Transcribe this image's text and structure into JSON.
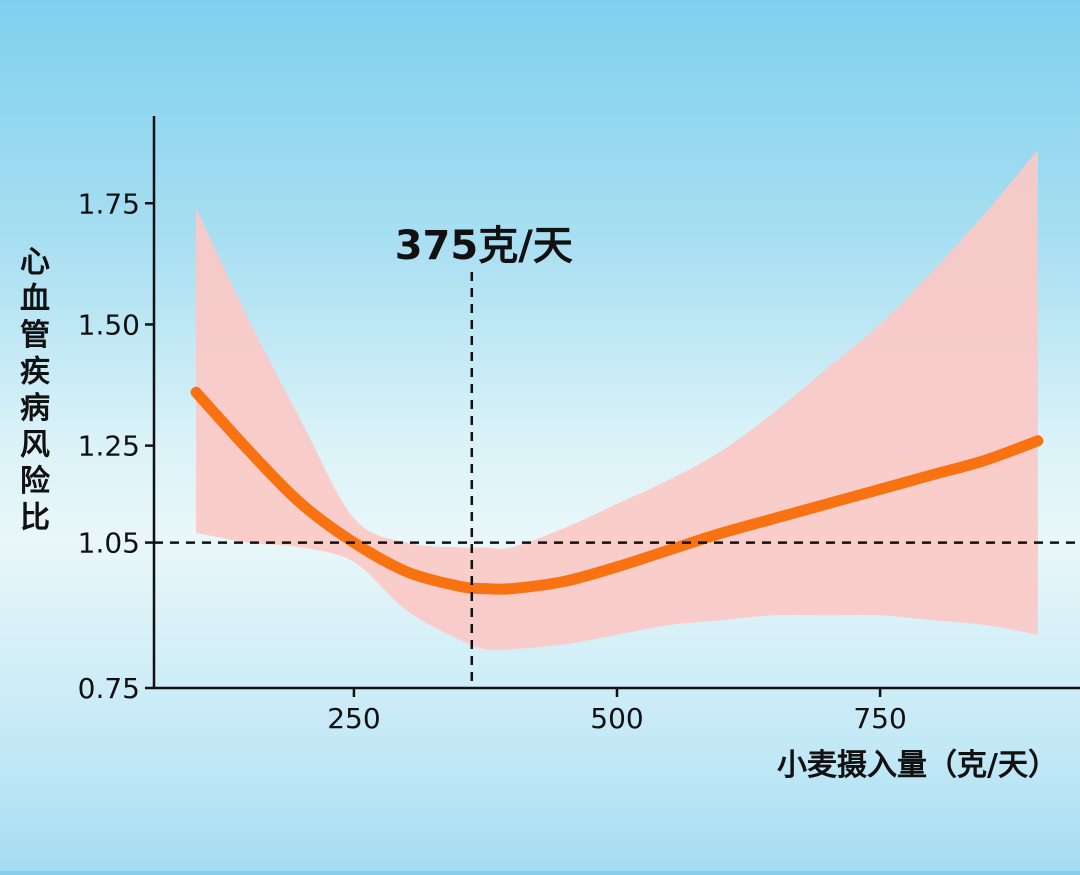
{
  "chart_data": {
    "type": "line",
    "title": "",
    "annotation": "375克/天",
    "annotation_x": 362,
    "xlabel": "小麦摄入量（克/天）",
    "ylabel": "心血管疾病风险比",
    "x_ticks": [
      250,
      500,
      750
    ],
    "x_tick_labels": [
      "250",
      "500",
      "750"
    ],
    "y_ticks": [
      0.75,
      1.05,
      1.25,
      1.5,
      1.75
    ],
    "y_tick_labels": [
      "0.75",
      "1.05",
      "1.25",
      "1.50",
      "1.75"
    ],
    "xlim": [
      60,
      940
    ],
    "ylim": [
      0.75,
      1.93
    ],
    "reference_line_y": 1.05,
    "grid": false,
    "colors": {
      "line": "#f97212",
      "band": "#fbc9c6",
      "axis": "#111111",
      "dashes": "#111111"
    },
    "series": [
      {
        "x": [
          100,
          150,
          200,
          250,
          300,
          350,
          375,
          400,
          450,
          500,
          550,
          600,
          650,
          700,
          750,
          800,
          850,
          900
        ],
        "y": [
          1.36,
          1.24,
          1.13,
          1.05,
          0.99,
          0.96,
          0.955,
          0.955,
          0.97,
          1.0,
          1.035,
          1.07,
          1.1,
          1.13,
          1.16,
          1.19,
          1.22,
          1.26
        ],
        "lower": [
          1.07,
          1.05,
          1.04,
          1.01,
          0.91,
          0.85,
          0.83,
          0.83,
          0.84,
          0.86,
          0.88,
          0.89,
          0.9,
          0.9,
          0.9,
          0.89,
          0.88,
          0.86
        ],
        "upper": [
          1.74,
          1.51,
          1.3,
          1.1,
          1.05,
          1.04,
          1.04,
          1.04,
          1.08,
          1.13,
          1.18,
          1.24,
          1.32,
          1.41,
          1.5,
          1.61,
          1.73,
          1.86
        ]
      }
    ]
  }
}
